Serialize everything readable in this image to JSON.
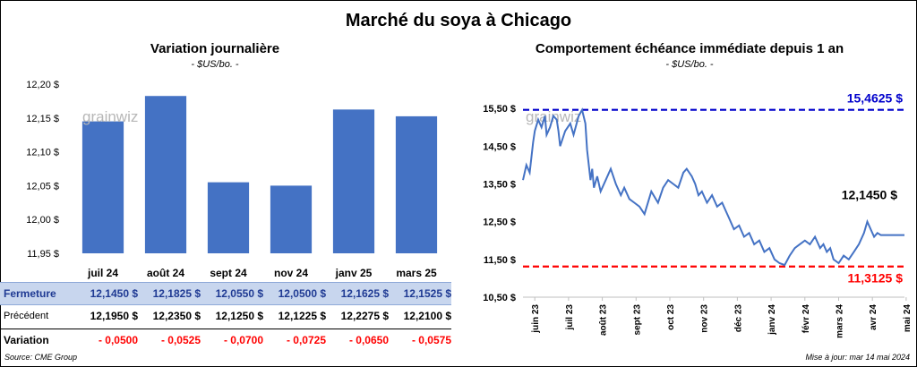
{
  "title": "Marché du soya à Chicago",
  "left_panel": {
    "title": "Variation  journalière",
    "unit": "- $US/bo. -"
  },
  "right_panel": {
    "title": "Comportement  échéance immédiate depuis 1 an",
    "unit": "- $US/bo. -"
  },
  "watermark": "grainwiz",
  "table": {
    "row_labels": {
      "close": "Fermeture",
      "previous": "Précédent",
      "variation": "Variation"
    },
    "close": [
      "12,1450  $",
      "12,1825  $",
      "12,0550  $",
      "12,0500  $",
      "12,1625  $",
      "12,1525  $"
    ],
    "previous": [
      "12,1950  $",
      "12,2350  $",
      "12,1250  $",
      "12,1225  $",
      "12,2275  $",
      "12,2100  $"
    ],
    "variation": [
      "- 0,0500",
      "- 0,0525",
      "- 0,0700",
      "- 0,0725",
      "- 0,0650",
      "- 0,0575"
    ]
  },
  "source": "Source: CME Group",
  "update": "Mise à jour: mar 14 mai 2024",
  "colors": {
    "bar": "#4472c4",
    "line": "#4472c4",
    "high": "#0000cc",
    "low": "#ff0000",
    "close_row_bg": "#c8d6ee"
  },
  "chart_data": [
    {
      "type": "bar",
      "categories": [
        "juil 24",
        "août 24",
        "sept 24",
        "nov 24",
        "janv 25",
        "mars 25"
      ],
      "values": [
        12.145,
        12.1825,
        12.055,
        12.05,
        12.1625,
        12.1525
      ],
      "ylim": [
        11.95,
        12.2
      ],
      "yticks": [
        11.95,
        12.0,
        12.05,
        12.1,
        12.15,
        12.2
      ],
      "ytick_labels": [
        "11,95 $",
        "12,00 $",
        "12,05 $",
        "12,10 $",
        "12,15 $",
        "12,20 $"
      ],
      "grid": false
    },
    {
      "type": "line",
      "x_tick_labels": [
        "juin 23",
        "juil 23",
        "août 23",
        "sept 23",
        "oct 23",
        "nov 23",
        "déc 23",
        "janv 24",
        "févr 24",
        "mars 24",
        "avr 24",
        "mai 24"
      ],
      "ylim": [
        10.5,
        16.0
      ],
      "yticks": [
        10.5,
        11.5,
        12.5,
        13.5,
        14.5,
        15.5
      ],
      "ytick_labels": [
        "10,50 $",
        "11,50 $",
        "12,50 $",
        "13,50 $",
        "14,50 $",
        "15,50 $"
      ],
      "x_months": [
        0.0,
        0.1,
        0.2,
        0.3,
        0.35,
        0.45,
        0.55,
        0.65,
        0.7,
        0.8,
        0.9,
        1.0,
        1.05,
        1.1,
        1.25,
        1.4,
        1.5,
        1.65,
        1.75,
        1.85,
        1.9,
        2.0,
        2.05,
        2.1,
        2.2,
        2.3,
        2.45,
        2.6,
        2.75,
        2.9,
        3.0,
        3.15,
        3.3,
        3.45,
        3.6,
        3.8,
        4.0,
        4.15,
        4.3,
        4.45,
        4.6,
        4.75,
        4.85,
        5.0,
        5.1,
        5.2,
        5.3,
        5.45,
        5.6,
        5.75,
        5.9,
        6.0,
        6.1,
        6.25,
        6.4,
        6.55,
        6.7,
        6.85,
        7.0,
        7.15,
        7.3,
        7.45,
        7.6,
        7.75,
        7.9,
        8.05,
        8.2,
        8.35,
        8.5,
        8.65,
        8.8,
        8.9,
        9.0,
        9.1,
        9.2,
        9.35,
        9.5,
        9.65,
        9.8,
        9.95,
        10.1,
        10.2,
        10.3,
        10.4,
        10.5,
        10.6,
        10.7,
        10.8,
        10.9,
        11.0,
        11.1,
        11.2,
        11.3
      ],
      "y_values": [
        13.6,
        14.0,
        13.8,
        14.6,
        14.9,
        15.2,
        15.0,
        15.3,
        14.8,
        15.0,
        15.3,
        15.2,
        14.9,
        14.5,
        14.9,
        15.1,
        14.8,
        15.3,
        15.46,
        15.1,
        14.4,
        13.6,
        13.9,
        13.4,
        13.7,
        13.3,
        13.6,
        13.9,
        13.5,
        13.2,
        13.4,
        13.1,
        13.0,
        12.9,
        12.7,
        13.3,
        13.0,
        13.4,
        13.6,
        13.5,
        13.4,
        13.8,
        13.9,
        13.7,
        13.5,
        13.2,
        13.3,
        13.0,
        13.2,
        12.9,
        13.0,
        12.8,
        12.6,
        12.3,
        12.4,
        12.1,
        12.2,
        11.9,
        12.0,
        11.7,
        11.8,
        11.5,
        11.4,
        11.35,
        11.6,
        11.8,
        11.9,
        12.0,
        11.9,
        12.1,
        11.8,
        11.9,
        11.7,
        11.8,
        11.5,
        11.4,
        11.6,
        11.5,
        11.7,
        11.9,
        12.2,
        12.5,
        12.3,
        12.1,
        12.2,
        12.145,
        12.145,
        12.145,
        12.145,
        12.145,
        12.145,
        12.145,
        12.145
      ],
      "x_span_months": 11.3,
      "hlines": [
        {
          "value": 15.4625,
          "label": "15,4625  $",
          "color": "#0000cc"
        },
        {
          "value": 11.3125,
          "label": "11,3125  $",
          "color": "#ff0000"
        }
      ],
      "last_label": "12,1450 $",
      "grid": false
    }
  ]
}
